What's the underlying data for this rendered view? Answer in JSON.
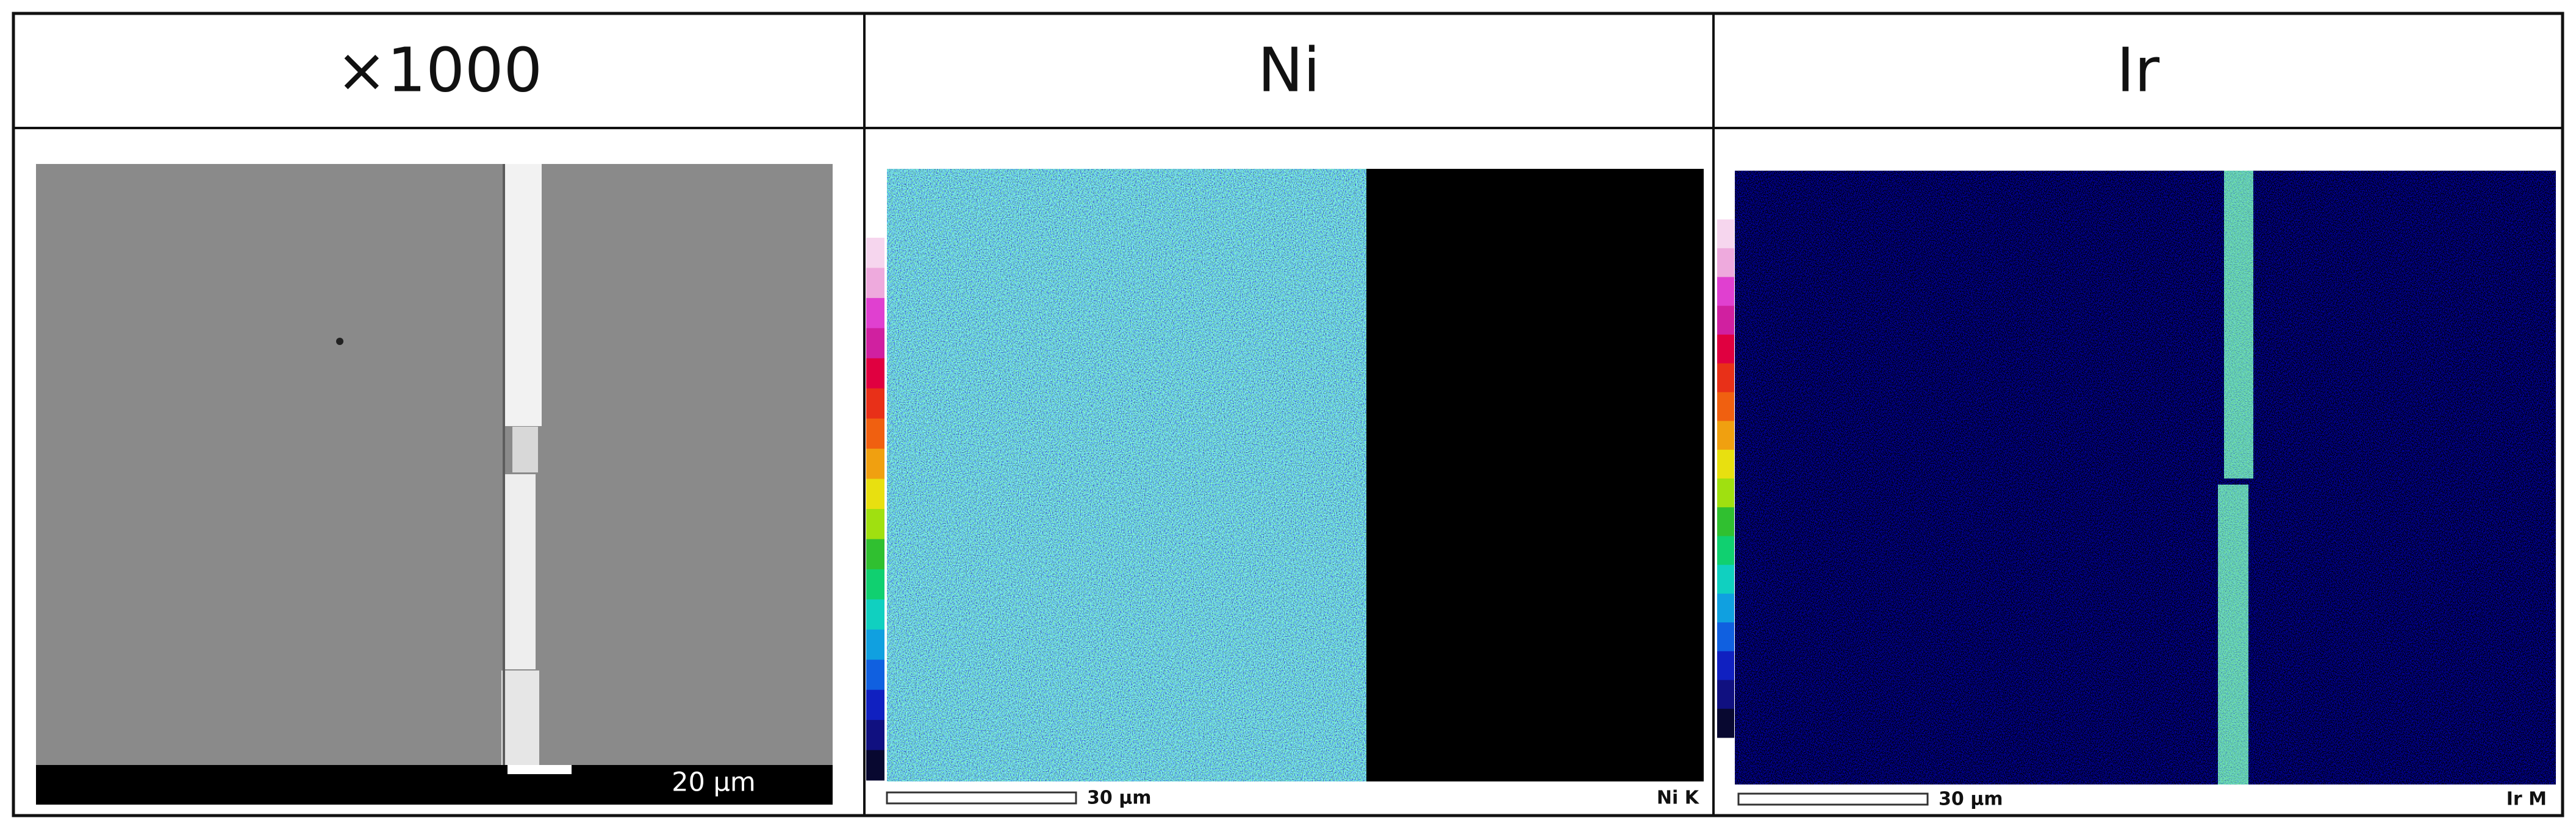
{
  "table": {
    "headers": [
      "×1000",
      "Ni",
      "Ir"
    ]
  },
  "panels": [
    {
      "scale_label": "20 μm"
    },
    {
      "scale_label": "30 μm",
      "map_label": "Ni K"
    },
    {
      "scale_label": "30 μm",
      "map_label": "Ir M"
    }
  ]
}
